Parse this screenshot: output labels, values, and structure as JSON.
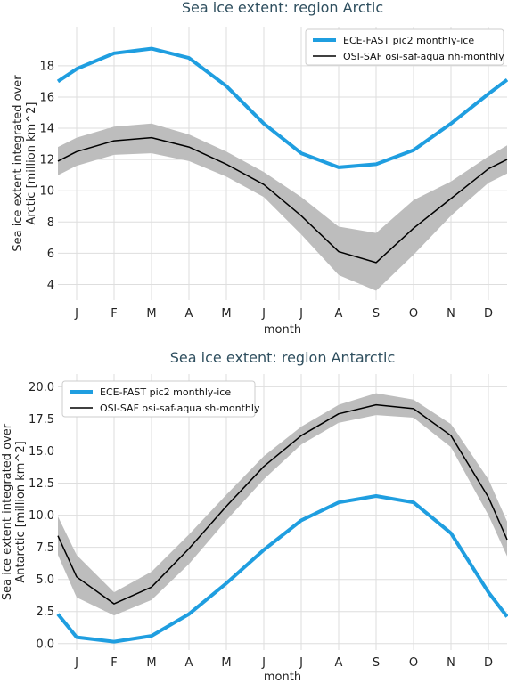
{
  "chart_data": [
    {
      "type": "line",
      "title": "Sea ice extent: region Arctic",
      "xlabel": "month",
      "ylabel": [
        "Sea ice extent integrated over",
        "Arctic [million km^2]"
      ],
      "categories": [
        "J",
        "F",
        "M",
        "A",
        "M",
        "J",
        "J",
        "A",
        "S",
        "O",
        "N",
        "D"
      ],
      "x": [
        0.5,
        1,
        2,
        3,
        4,
        5,
        6,
        7,
        8,
        9,
        10,
        11,
        12,
        12.5
      ],
      "xlim": [
        0.5,
        12.5
      ],
      "ylim": [
        3.0,
        20.5
      ],
      "yticks": [
        4,
        6,
        8,
        10,
        12,
        14,
        16,
        18
      ],
      "ytick_labels": [
        "4",
        "6",
        "8",
        "10",
        "12",
        "14",
        "16",
        "18"
      ],
      "legend_position": "top-right",
      "grid": true,
      "series": [
        {
          "name": "ECE-FAST pic2 monthly-ice",
          "color": "#1f9ee0",
          "values": [
            17.0,
            17.8,
            18.8,
            19.1,
            18.5,
            16.7,
            14.3,
            12.4,
            11.5,
            11.7,
            12.6,
            14.3,
            16.2,
            17.1
          ]
        },
        {
          "name": "OSI-SAF osi-saf-aqua nh-monthly",
          "color": "#000000",
          "values": [
            11.9,
            12.5,
            13.2,
            13.4,
            12.8,
            11.7,
            10.4,
            8.4,
            6.1,
            5.4,
            7.6,
            9.5,
            11.4,
            12.0
          ],
          "band_low": [
            11.0,
            11.6,
            12.3,
            12.4,
            11.9,
            10.9,
            9.6,
            7.2,
            4.6,
            3.6,
            5.9,
            8.4,
            10.5,
            11.1
          ],
          "band_high": [
            12.8,
            13.4,
            14.1,
            14.3,
            13.6,
            12.5,
            11.2,
            9.6,
            7.7,
            7.3,
            9.4,
            10.6,
            12.2,
            12.9
          ],
          "band_color": "#bdbdbd"
        }
      ]
    },
    {
      "type": "line",
      "title": "Sea ice extent: region Antarctic",
      "xlabel": "month",
      "ylabel": [
        "Sea ice extent integrated over",
        "Antarctic [million km^2]"
      ],
      "categories": [
        "J",
        "F",
        "M",
        "A",
        "M",
        "J",
        "J",
        "A",
        "S",
        "O",
        "N",
        "D"
      ],
      "x": [
        0.5,
        1,
        2,
        3,
        4,
        5,
        6,
        7,
        8,
        9,
        10,
        11,
        12,
        12.5
      ],
      "xlim": [
        0.5,
        12.5
      ],
      "ylim": [
        -0.5,
        21.0
      ],
      "yticks": [
        0,
        2.5,
        5,
        7.5,
        10,
        12.5,
        15,
        17.5,
        20
      ],
      "ytick_labels": [
        "0.0",
        "2.5",
        "5.0",
        "7.5",
        "10.0",
        "12.5",
        "15.0",
        "17.5",
        "20.0"
      ],
      "legend_position": "top-left",
      "grid": true,
      "series": [
        {
          "name": "ECE-FAST pic2 monthly-ice",
          "color": "#1f9ee0",
          "values": [
            2.3,
            0.5,
            0.15,
            0.6,
            2.3,
            4.7,
            7.3,
            9.6,
            11.0,
            11.5,
            11.0,
            8.6,
            4.0,
            2.1
          ]
        },
        {
          "name": "OSI-SAF osi-saf-aqua sh-monthly",
          "color": "#000000",
          "values": [
            8.4,
            5.2,
            3.1,
            4.4,
            7.4,
            10.7,
            13.8,
            16.2,
            17.9,
            18.6,
            18.3,
            16.2,
            11.4,
            8.1
          ],
          "band_low": [
            6.9,
            3.6,
            2.2,
            3.4,
            6.2,
            9.6,
            12.8,
            15.5,
            17.2,
            17.8,
            17.6,
            15.3,
            10.0,
            6.8
          ],
          "band_high": [
            9.9,
            6.9,
            4.0,
            5.6,
            8.5,
            11.6,
            14.6,
            16.9,
            18.6,
            19.5,
            19.0,
            17.1,
            12.8,
            9.5
          ],
          "band_color": "#bdbdbd"
        }
      ]
    }
  ]
}
